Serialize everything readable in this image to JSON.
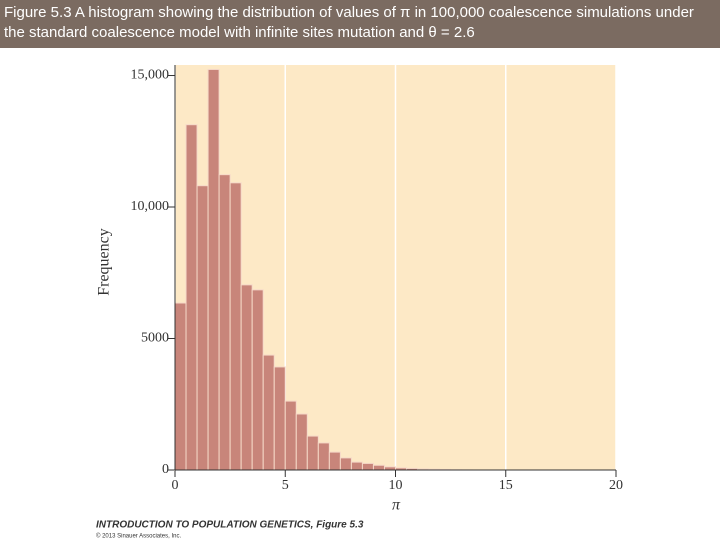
{
  "caption": "Figure 5.3  A histogram showing the distribution of values of π in 100,000 coalescence simulations under the standard coalescence model with infinite sites mutation and θ = 2.6",
  "chart_data": {
    "type": "histogram",
    "ylabel": "Frequency",
    "xlabel": "π",
    "bins": [
      0,
      0.5,
      1,
      1.5,
      2,
      2.5,
      3,
      3.5,
      4,
      4.5,
      5,
      5.5,
      6,
      6.5,
      7,
      7.5,
      8,
      8.5,
      9,
      9.5,
      10,
      10.5,
      11,
      11.5,
      12,
      12.5,
      13,
      13.5
    ],
    "values": [
      6350,
      13130,
      10810,
      15230,
      11230,
      10920,
      7040,
      6850,
      4370,
      3920,
      2620,
      2130,
      1290,
      1030,
      680,
      460,
      300,
      250,
      180,
      120,
      80,
      60,
      40,
      30,
      20,
      10,
      5
    ],
    "color": "#c8857a",
    "xlim": [
      0,
      20
    ],
    "ylim": [
      0,
      15400
    ],
    "xticks": [
      0,
      5,
      10,
      15,
      20
    ],
    "yticks": [
      0,
      5000,
      {
        "value": 10000,
        "label": "10,000"
      },
      {
        "value": 15000,
        "label": "15,000"
      }
    ],
    "grid": true
  },
  "footer": {
    "title": "INTRODUCTION TO POPULATION GENETICS, Figure 5.3",
    "copyright": "© 2013 Sinauer Associates, Inc."
  }
}
